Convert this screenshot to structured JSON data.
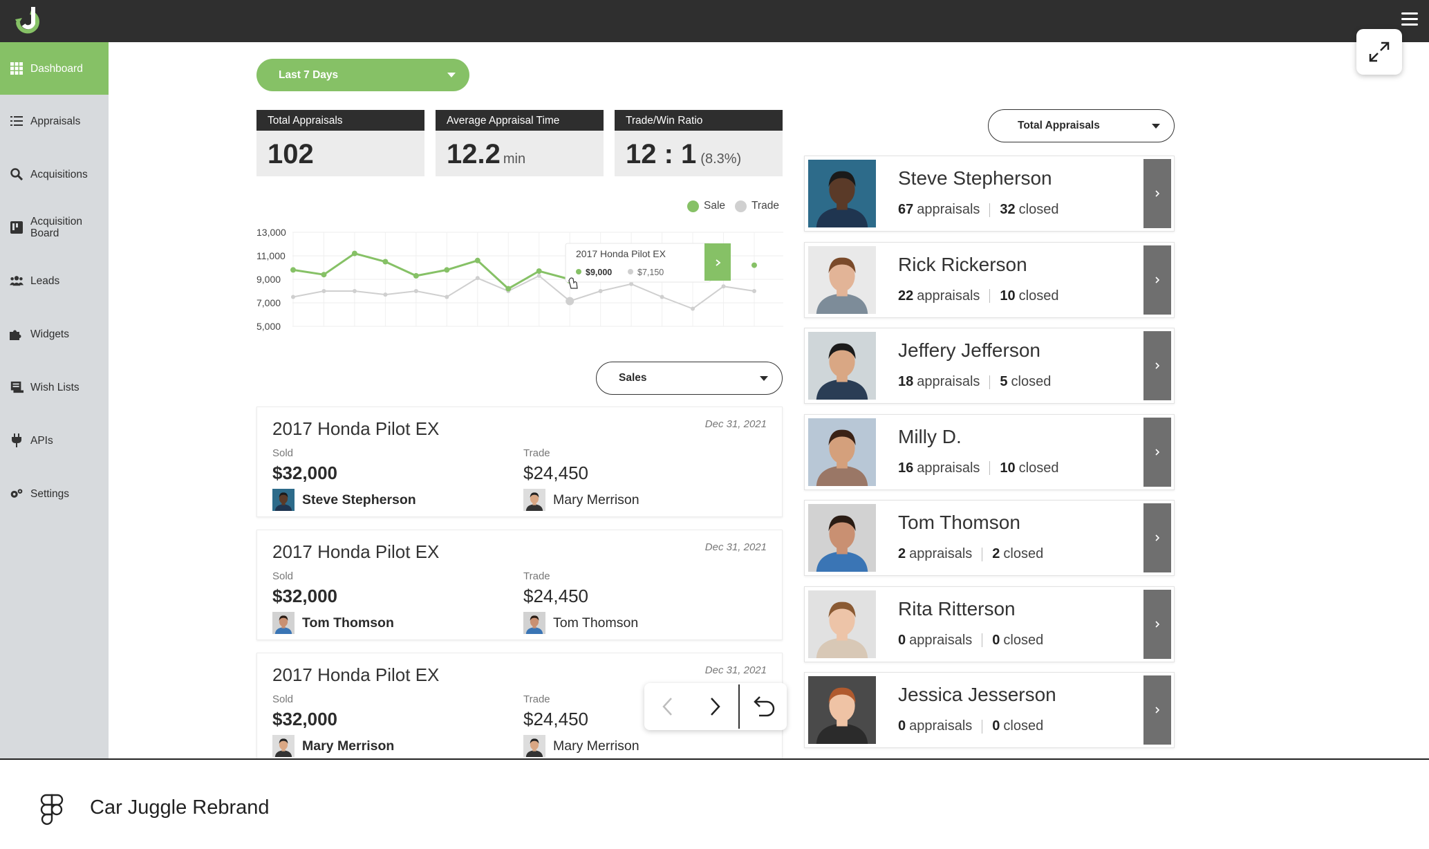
{
  "sidebar": {
    "items": [
      {
        "label": "Dashboard",
        "icon": "grid-icon",
        "active": true
      },
      {
        "label": "Appraisals",
        "icon": "checklist-icon"
      },
      {
        "label": "Acquisitions",
        "icon": "search-icon"
      },
      {
        "label": "Acquisition Board",
        "icon": "board-icon"
      },
      {
        "label": "Leads",
        "icon": "people-icon"
      },
      {
        "label": "Widgets",
        "icon": "puzzle-icon"
      },
      {
        "label": "Wish Lists",
        "icon": "wishlist-icon"
      },
      {
        "label": "APIs",
        "icon": "plug-icon"
      },
      {
        "label": "Settings",
        "icon": "gears-icon"
      }
    ]
  },
  "filters": {
    "period": "Last 7 Days",
    "list_type": "Sales",
    "ranking": "Total Appraisals"
  },
  "stats": [
    {
      "label": "Total Appraisals",
      "value": "102",
      "unit": ""
    },
    {
      "label": "Average Appraisal Time",
      "value": "12.2",
      "unit": "min"
    },
    {
      "label": "Trade/Win Ratio",
      "value": "12 : 1",
      "unit": "(8.3%)"
    }
  ],
  "chart_data": {
    "type": "line",
    "yticks": [
      "13,000",
      "11,000",
      "9,000",
      "7,000",
      "5,000"
    ],
    "ylim": [
      5000,
      13000
    ],
    "legend": [
      "Sale",
      "Trade"
    ],
    "legend_placement": "top-right",
    "grid": true,
    "series": [
      {
        "name": "Sale",
        "color": "#86c166",
        "values": [
          9800,
          9400,
          11200,
          10500,
          9300,
          9800,
          10600,
          8200,
          9700,
          9000,
          null,
          null,
          null,
          null,
          null,
          10200
        ]
      },
      {
        "name": "Trade",
        "color": "#cfcfcf",
        "values": [
          7500,
          8000,
          8000,
          7700,
          8000,
          7500,
          9100,
          8000,
          9300,
          7150,
          8000,
          8600,
          7500,
          6500,
          8400,
          8000
        ]
      }
    ],
    "tooltip": {
      "title": "2017 Honda Pilot EX",
      "sale": "$9,000",
      "trade": "$7,150"
    }
  },
  "deals": [
    {
      "title": "2017 Honda Pilot EX",
      "date": "Dec 31, 2021",
      "sold_label": "Sold",
      "sold_price": "$32,000",
      "seller": "Steve Stepherson",
      "trade_label": "Trade",
      "trade_price": "$24,450",
      "trader": "Mary Merrison"
    },
    {
      "title": "2017 Honda Pilot EX",
      "date": "Dec 31, 2021",
      "sold_label": "Sold",
      "sold_price": "$32,000",
      "seller": "Tom Thomson",
      "trade_label": "Trade",
      "trade_price": "$24,450",
      "trader": "Tom Thomson"
    },
    {
      "title": "2017 Honda Pilot EX",
      "date": "Dec 31, 2021",
      "sold_label": "Sold",
      "sold_price": "$32,000",
      "seller": "Mary Merrison",
      "trade_label": "Trade",
      "trade_price": "$24,450",
      "trader": "Mary Merrison"
    }
  ],
  "people": [
    {
      "name": "Steve Stepherson",
      "appraisals": "67",
      "closed": "32",
      "skin": "#5a3a28",
      "hair": "#1a1a1a",
      "bg": "#2d6b8a",
      "shirt": "#1f3550"
    },
    {
      "name": "Rick Rickerson",
      "appraisals": "22",
      "closed": "10",
      "skin": "#e2b497",
      "hair": "#7a4a2a",
      "bg": "#e9e9e9",
      "shirt": "#7d8c99"
    },
    {
      "name": "Jeffery Jefferson",
      "appraisals": "18",
      "closed": "5",
      "skin": "#d9a784",
      "hair": "#1b1b1b",
      "bg": "#cfd6d9",
      "shirt": "#2a3d55"
    },
    {
      "name": "Milly D.",
      "appraisals": "16",
      "closed": "10",
      "skin": "#d4a07c",
      "hair": "#3a2216",
      "bg": "#b8c7d6",
      "shirt": "#9a7766"
    },
    {
      "name": "Tom Thomson",
      "appraisals": "2",
      "closed": "2",
      "skin": "#c99072",
      "hair": "#2a1c14",
      "bg": "#d2d2d2",
      "shirt": "#3a75b5"
    },
    {
      "name": "Rita Ritterson",
      "appraisals": "0",
      "closed": "0",
      "skin": "#edc4a8",
      "hair": "#8a5a33",
      "bg": "#e1e1e1",
      "shirt": "#d8c8b6"
    },
    {
      "name": "Jessica Jesserson",
      "appraisals": "0",
      "closed": "0",
      "skin": "#efc3a5",
      "hair": "#b05a2e",
      "bg": "#4a4a4a",
      "shirt": "#2b2b2b"
    }
  ],
  "labels": {
    "appraisals": "appraisals",
    "closed": "closed"
  },
  "footer": {
    "title": "Car Juggle Rebrand"
  }
}
